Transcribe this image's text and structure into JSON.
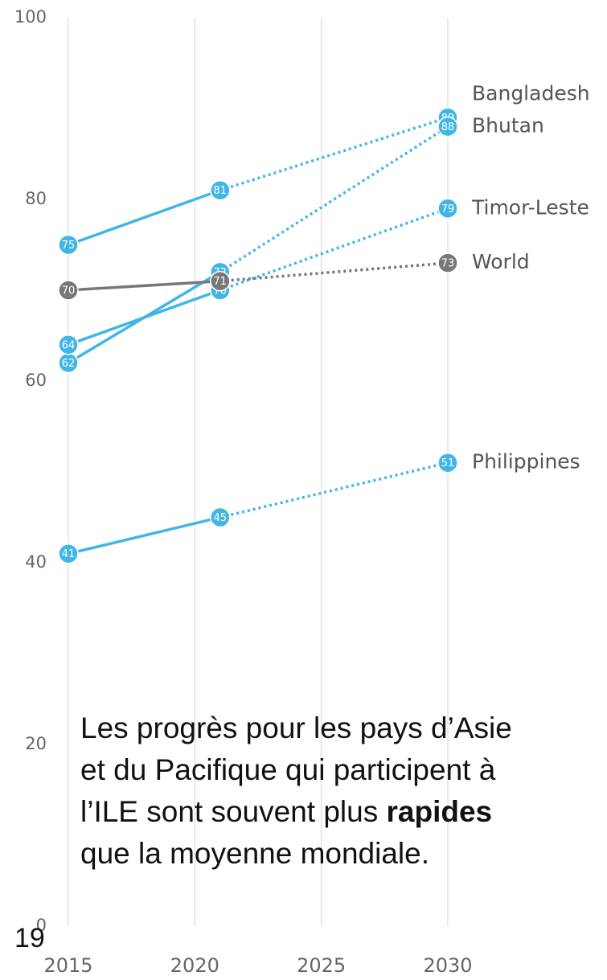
{
  "chart_data": {
    "type": "line",
    "x": [
      2015,
      2021,
      2030
    ],
    "series": [
      {
        "name": "Bangladesh",
        "color": "#41b6e6",
        "values": [
          75,
          81,
          89
        ]
      },
      {
        "name": "Bhutan",
        "color": "#41b6e6",
        "values": [
          62,
          72,
          88
        ]
      },
      {
        "name": "Timor-Leste",
        "color": "#41b6e6",
        "values": [
          64,
          70,
          79
        ]
      },
      {
        "name": "World",
        "color": "#777777",
        "values": [
          70,
          71,
          73
        ]
      },
      {
        "name": "Philippines",
        "color": "#41b6e6",
        "values": [
          41,
          45,
          51
        ]
      }
    ],
    "xlim": [
      2015,
      2030
    ],
    "xticks": [
      2015,
      2020,
      2025,
      2030
    ],
    "ylim": [
      0,
      100
    ],
    "yticks": [
      0,
      20,
      40,
      60,
      80,
      100
    ],
    "grid": true,
    "annotation": {
      "line1": "Les progrès pour les pays d’Asie",
      "line2": "et du Pacifique qui participent à",
      "line3": "l’ILE sont souvent plus ",
      "line3_bold": "rapides",
      "line4": "que la moyenne mondiale."
    }
  },
  "page_number": "19"
}
